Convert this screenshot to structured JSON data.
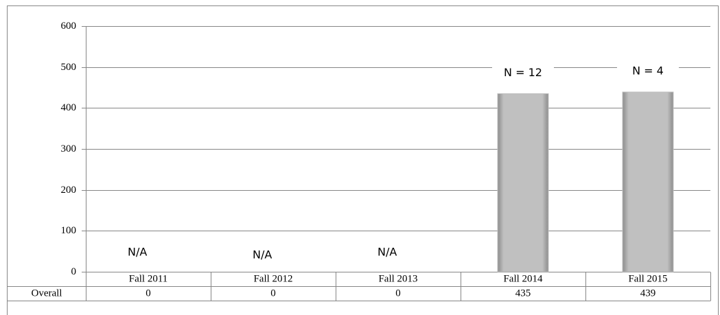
{
  "chart_data": {
    "type": "bar",
    "categories": [
      "Fall 2011",
      "Fall 2012",
      "Fall 2013",
      "Fall 2014",
      "Fall 2015"
    ],
    "series": [
      {
        "name": "Overall",
        "color": "#c0c0c0",
        "values": [
          0,
          0,
          0,
          435,
          439
        ]
      }
    ],
    "data_labels": [
      "N/A",
      "N/A",
      "N/A",
      "N = 12",
      "N = 4"
    ],
    "ylim": [
      0,
      600
    ],
    "yticks": [
      0,
      100,
      200,
      300,
      400,
      500,
      600
    ],
    "grid": true
  }
}
